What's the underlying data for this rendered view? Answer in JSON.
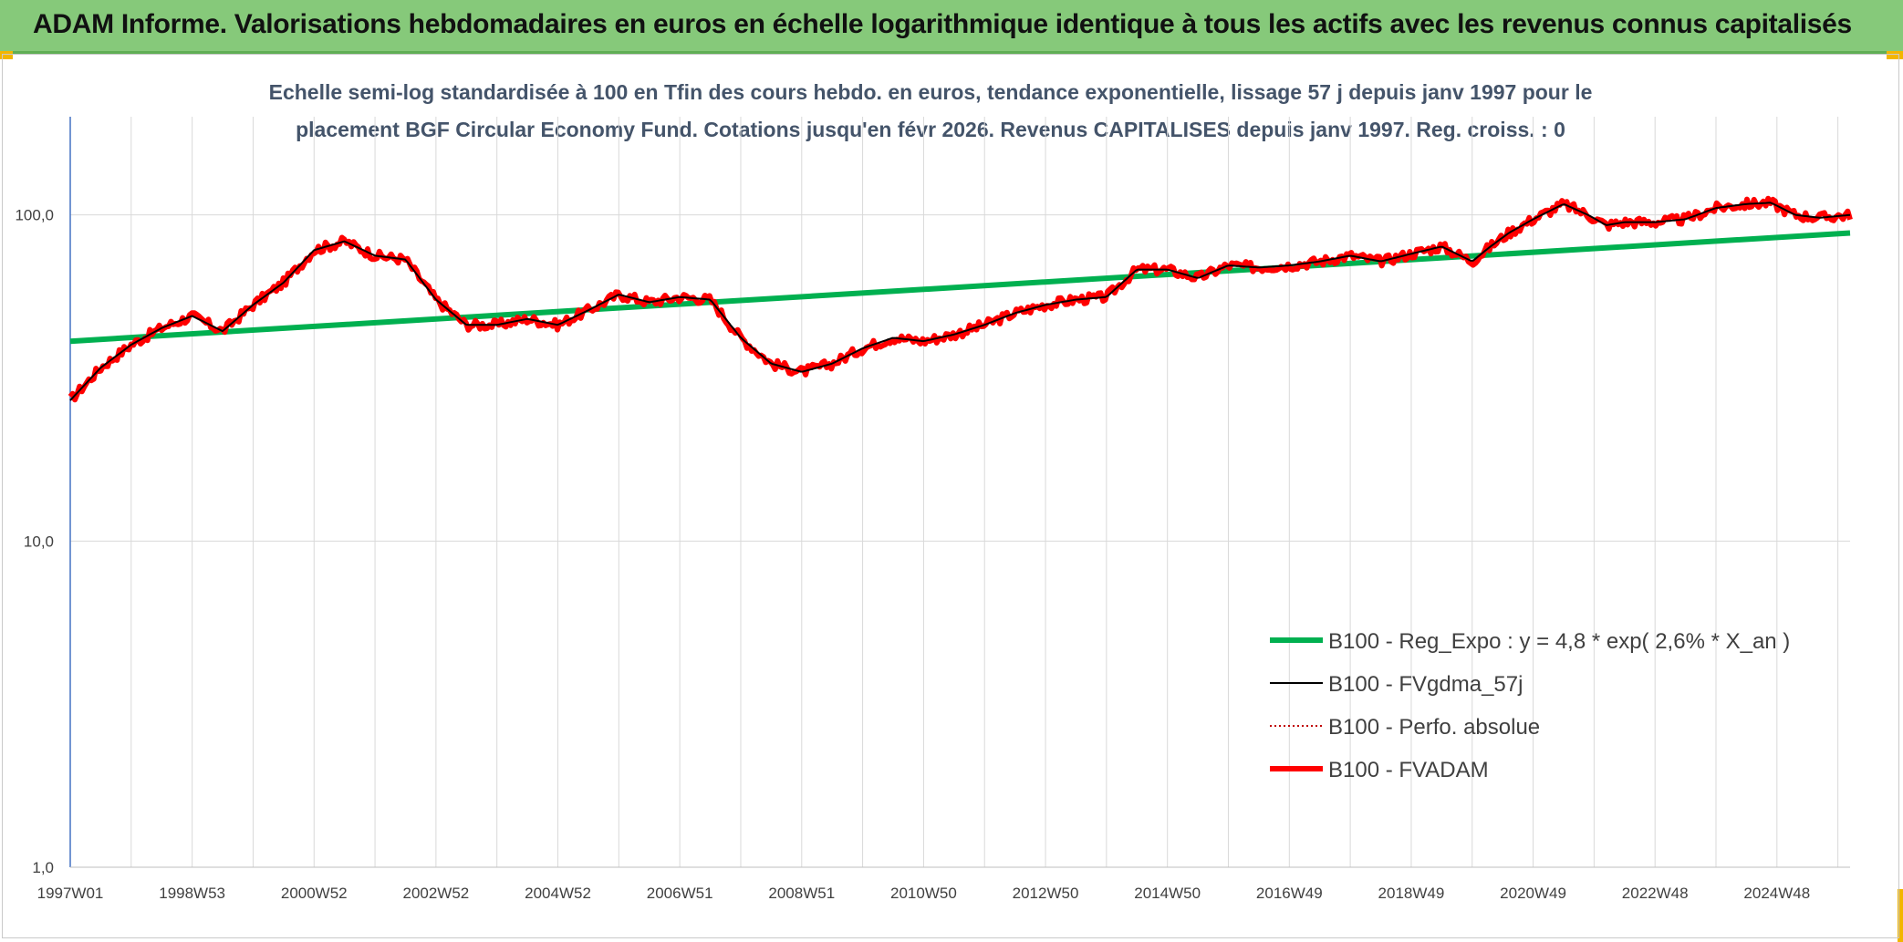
{
  "header": {
    "title": "ADAM Informe. Valorisations hebdomadaires en euros en échelle logarithmique identique à tous les actifs avec les revenus connus capitalisés",
    "background": "#86c97a"
  },
  "chart_data": {
    "type": "line",
    "title_line1": "Echelle semi-log standardisée à 100 en Tfin des cours hebdo. en euros, tendance exponentielle, lissage 57 j depuis janv 1997 pour le",
    "title_line2": "placement BGF Circular Economy Fund. Cotations jusqu'en févr 2026. Revenus CAPITALISES depuis janv 1997. Reg. croiss. : 0",
    "xlabel": "",
    "ylabel": "",
    "y_scale": "log",
    "ylim": [
      1,
      200
    ],
    "y_ticks": [
      "1,0",
      "10,0",
      "100,0"
    ],
    "x_ticks": [
      "1997W01",
      "1998W53",
      "2000W52",
      "2002W52",
      "2004W52",
      "2006W51",
      "2008W51",
      "2010W50",
      "2012W50",
      "2014W50",
      "2016W49",
      "2018W49",
      "2020W49",
      "2022W48",
      "2024W48"
    ],
    "x_range_years": [
      1997.0,
      2026.2
    ],
    "grid": "vertical and horizontal",
    "legend_position": "bottom-right",
    "series": [
      {
        "name": "B100 - Reg_Expo : y = 4,8 * exp( 2,6% *  X_an )",
        "color": "#00b050",
        "style": "solid-thick",
        "x": [
          1997.0,
          2026.2
        ],
        "y": [
          41,
          88
        ]
      },
      {
        "name": "B100 - FVgdma_57j",
        "color": "#000000",
        "style": "solid-thin",
        "x": [
          1997.0,
          1997.5,
          1998.0,
          1998.5,
          1999.0,
          1999.5,
          2000.0,
          2000.5,
          2001.0,
          2001.5,
          2002.0,
          2002.5,
          2003.0,
          2003.5,
          2004.0,
          2004.5,
          2005.0,
          2005.5,
          2006.0,
          2006.5,
          2007.0,
          2007.5,
          2008.0,
          2008.5,
          2009.0,
          2009.5,
          2010.0,
          2010.5,
          2011.0,
          2011.5,
          2012.0,
          2012.5,
          2013.0,
          2013.5,
          2014.0,
          2014.5,
          2015.0,
          2015.5,
          2016.0,
          2016.5,
          2017.0,
          2017.5,
          2018.0,
          2018.5,
          2019.0,
          2019.5,
          2020.0,
          2020.3,
          2020.6,
          2021.0,
          2021.5,
          2021.9,
          2022.2,
          2022.5,
          2023.0,
          2023.5,
          2024.0,
          2024.5,
          2024.9,
          2025.3,
          2025.7,
          2026.2
        ],
        "y": [
          27,
          34,
          40,
          45,
          49,
          44,
          53,
          62,
          78,
          83,
          75,
          73,
          55,
          46,
          46,
          48,
          46,
          51,
          57,
          54,
          56,
          55,
          42,
          35,
          33,
          35,
          39,
          42,
          41,
          43,
          46,
          50,
          53,
          55,
          56,
          68,
          68,
          64,
          70,
          69,
          70,
          72,
          75,
          72,
          76,
          80,
          72,
          80,
          88,
          97,
          108,
          100,
          93,
          95,
          95,
          97,
          105,
          108,
          109,
          100,
          98,
          100
        ]
      },
      {
        "name": "B100 - Perfo. absolue",
        "color": "#c00000",
        "style": "dotted",
        "x": [
          1997.0,
          1997.5,
          1998.0,
          1998.5,
          1999.0,
          1999.5,
          2000.0,
          2000.5,
          2001.0,
          2001.5,
          2002.0,
          2002.5,
          2003.0,
          2003.5,
          2004.0,
          2004.5,
          2005.0,
          2005.5,
          2006.0,
          2006.5,
          2007.0,
          2007.5,
          2008.0,
          2008.5,
          2009.0,
          2009.5,
          2010.0,
          2010.5,
          2011.0,
          2011.5,
          2012.0,
          2012.5,
          2013.0,
          2013.5,
          2014.0,
          2014.5,
          2015.0,
          2015.5,
          2016.0,
          2016.5,
          2017.0,
          2017.5,
          2018.0,
          2018.5,
          2019.0,
          2019.5,
          2020.0,
          2020.3,
          2020.6,
          2021.0,
          2021.5,
          2021.9,
          2022.2,
          2022.5,
          2023.0,
          2023.5,
          2024.0,
          2024.5,
          2024.9,
          2025.3,
          2025.7,
          2026.2
        ],
        "y": [
          27,
          34,
          40,
          45,
          49,
          44,
          53,
          62,
          78,
          83,
          75,
          73,
          55,
          46,
          46,
          48,
          46,
          51,
          57,
          54,
          56,
          55,
          42,
          35,
          33,
          35,
          39,
          42,
          41,
          43,
          46,
          50,
          53,
          55,
          56,
          68,
          68,
          64,
          70,
          69,
          70,
          72,
          75,
          72,
          76,
          80,
          72,
          80,
          88,
          97,
          108,
          100,
          93,
          95,
          95,
          97,
          105,
          108,
          109,
          100,
          98,
          100
        ]
      },
      {
        "name": "B100 - FVADAM",
        "color": "#ff0000",
        "style": "solid-thick",
        "x": [
          1997.0,
          1997.5,
          1998.0,
          1998.5,
          1999.0,
          1999.5,
          2000.0,
          2000.5,
          2001.0,
          2001.5,
          2002.0,
          2002.5,
          2003.0,
          2003.5,
          2004.0,
          2004.5,
          2005.0,
          2005.5,
          2006.0,
          2006.5,
          2007.0,
          2007.5,
          2008.0,
          2008.5,
          2009.0,
          2009.5,
          2010.0,
          2010.5,
          2011.0,
          2011.5,
          2012.0,
          2012.5,
          2013.0,
          2013.5,
          2014.0,
          2014.5,
          2015.0,
          2015.5,
          2016.0,
          2016.5,
          2017.0,
          2017.5,
          2018.0,
          2018.5,
          2019.0,
          2019.5,
          2020.0,
          2020.3,
          2020.6,
          2021.0,
          2021.5,
          2021.9,
          2022.2,
          2022.5,
          2023.0,
          2023.5,
          2024.0,
          2024.5,
          2024.9,
          2025.3,
          2025.7,
          2026.2
        ],
        "y": [
          27,
          34,
          40,
          45,
          49,
          44,
          53,
          62,
          78,
          83,
          75,
          73,
          55,
          46,
          46,
          48,
          46,
          51,
          57,
          54,
          56,
          55,
          42,
          35,
          33,
          35,
          39,
          42,
          41,
          43,
          46,
          50,
          53,
          55,
          56,
          68,
          68,
          64,
          70,
          69,
          70,
          72,
          75,
          72,
          76,
          80,
          72,
          80,
          88,
          97,
          108,
          100,
          93,
          95,
          95,
          97,
          105,
          108,
          109,
          100,
          98,
          100
        ]
      }
    ]
  }
}
